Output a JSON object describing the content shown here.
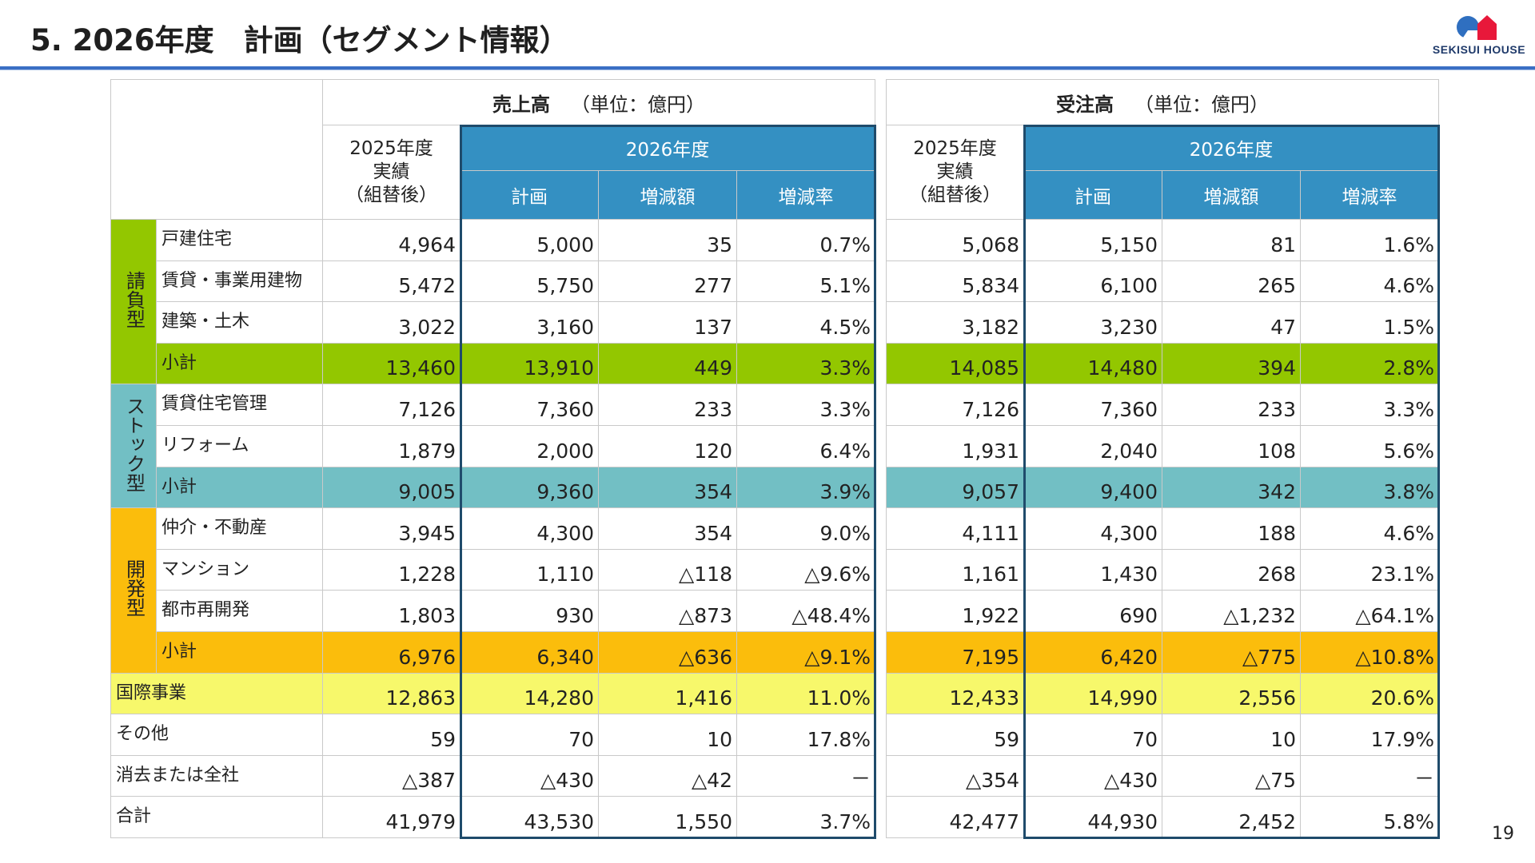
{
  "header": {
    "title": "5. 2026年度　計画（セグメント情報）",
    "logo_text": "SEKISUI HOUSE",
    "page_number": "19"
  },
  "colors": {
    "accent_blue": "#3490c2",
    "green": "#93c700",
    "teal": "#72bfc4",
    "orange": "#fbbd0c",
    "yellow": "#f7f86b"
  },
  "sales": {
    "title": "売上高",
    "unit": "（単位：億円）",
    "prev_header": [
      "2025年度",
      "実績",
      "（組替後）"
    ],
    "year_header": "2026年度",
    "columns": [
      "計画",
      "増減額",
      "増減率"
    ]
  },
  "orders": {
    "title": "受注高",
    "unit": "（単位：億円）",
    "prev_header": [
      "2025年度",
      "実績",
      "（組替後）"
    ],
    "year_header": "2026年度",
    "columns": [
      "計画",
      "増減額",
      "増減率"
    ]
  },
  "categories": {
    "contract": "請負型",
    "stock": "ストック型",
    "development": "開発型"
  },
  "rows": [
    {
      "label": "戸建住宅",
      "sales": [
        "4,964",
        "5,000",
        "35",
        "0.7%"
      ],
      "orders": [
        "5,068",
        "5,150",
        "81",
        "1.6%"
      ]
    },
    {
      "label": "賃貸・事業用建物",
      "sales": [
        "5,472",
        "5,750",
        "277",
        "5.1%"
      ],
      "orders": [
        "5,834",
        "6,100",
        "265",
        "4.6%"
      ]
    },
    {
      "label": "建築・土木",
      "sales": [
        "3,022",
        "3,160",
        "137",
        "4.5%"
      ],
      "orders": [
        "3,182",
        "3,230",
        "47",
        "1.5%"
      ]
    },
    {
      "label": "小計",
      "sales": [
        "13,460",
        "13,910",
        "449",
        "3.3%"
      ],
      "orders": [
        "14,085",
        "14,480",
        "394",
        "2.8%"
      ]
    },
    {
      "label": "賃貸住宅管理",
      "sales": [
        "7,126",
        "7,360",
        "233",
        "3.3%"
      ],
      "orders": [
        "7,126",
        "7,360",
        "233",
        "3.3%"
      ]
    },
    {
      "label": "リフォーム",
      "sales": [
        "1,879",
        "2,000",
        "120",
        "6.4%"
      ],
      "orders": [
        "1,931",
        "2,040",
        "108",
        "5.6%"
      ]
    },
    {
      "label": "小計",
      "sales": [
        "9,005",
        "9,360",
        "354",
        "3.9%"
      ],
      "orders": [
        "9,057",
        "9,400",
        "342",
        "3.8%"
      ]
    },
    {
      "label": "仲介・不動産",
      "sales": [
        "3,945",
        "4,300",
        "354",
        "9.0%"
      ],
      "orders": [
        "4,111",
        "4,300",
        "188",
        "4.6%"
      ]
    },
    {
      "label": "マンション",
      "sales": [
        "1,228",
        "1,110",
        "△118",
        "△9.6%"
      ],
      "orders": [
        "1,161",
        "1,430",
        "268",
        "23.1%"
      ]
    },
    {
      "label": "都市再開発",
      "sales": [
        "1,803",
        "930",
        "△873",
        "△48.4%"
      ],
      "orders": [
        "1,922",
        "690",
        "△1,232",
        "△64.1%"
      ]
    },
    {
      "label": "小計",
      "sales": [
        "6,976",
        "6,340",
        "△636",
        "△9.1%"
      ],
      "orders": [
        "7,195",
        "6,420",
        "△775",
        "△10.8%"
      ]
    },
    {
      "label": "国際事業",
      "sales": [
        "12,863",
        "14,280",
        "1,416",
        "11.0%"
      ],
      "orders": [
        "12,433",
        "14,990",
        "2,556",
        "20.6%"
      ]
    },
    {
      "label": "その他",
      "sales": [
        "59",
        "70",
        "10",
        "17.8%"
      ],
      "orders": [
        "59",
        "70",
        "10",
        "17.9%"
      ]
    },
    {
      "label": "消去または全社",
      "sales": [
        "△387",
        "△430",
        "△42",
        "－"
      ],
      "orders": [
        "△354",
        "△430",
        "△75",
        "－"
      ]
    },
    {
      "label": "合計",
      "sales": [
        "41,979",
        "43,530",
        "1,550",
        "3.7%"
      ],
      "orders": [
        "42,477",
        "44,930",
        "2,452",
        "5.8%"
      ]
    }
  ]
}
